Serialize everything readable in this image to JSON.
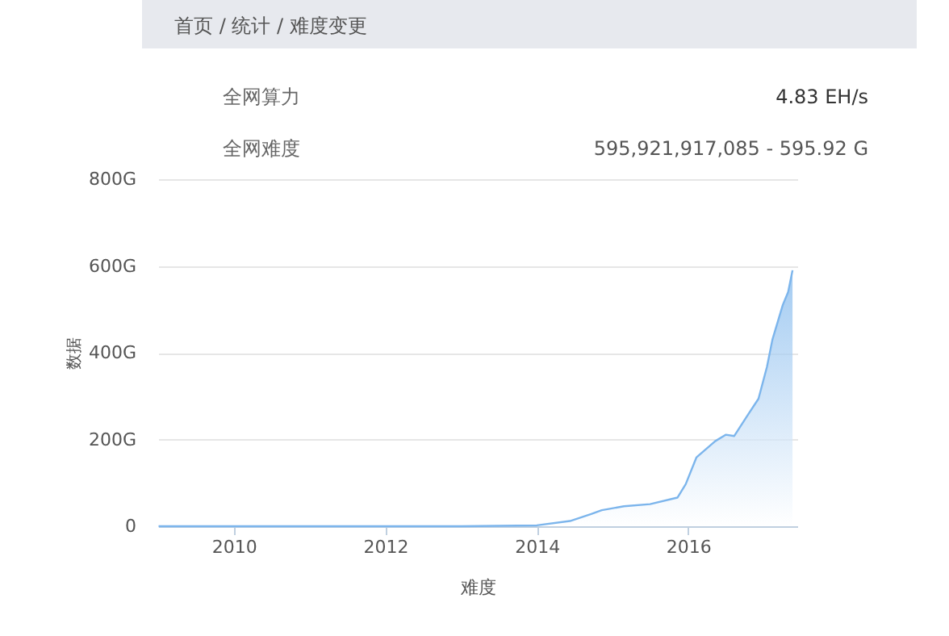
{
  "chart_data": {
    "type": "area",
    "xlabel": "难度",
    "ylabel": "数据",
    "annotations": [
      "首页 / 统计 / 难度变更",
      "全网算力",
      "4.83 EH/s",
      "全网难度",
      "595,921,917,085 - 595.92 G"
    ],
    "x": [
      "2009-01-03",
      "2010-06-01",
      "2012-01-01",
      "2013-01-01",
      "2014-01-01",
      "2014-06-10",
      "2014-09-20",
      "2014-11-10",
      "2015-02-25",
      "2015-07-01",
      "2015-11-10",
      "2015-12-20",
      "2016-02-10",
      "2016-05-10",
      "2016-07-01",
      "2016-08-10",
      "2016-10-15",
      "2016-12-05",
      "2017-01-15",
      "2017-02-10",
      "2017-04-01",
      "2017-04-27",
      "2017-05-18"
    ],
    "series": [
      {
        "color": "#7cb5ec",
        "values": [
          0,
          0,
          0,
          0,
          2,
          12,
          28,
          37,
          46,
          51,
          66,
          97,
          159,
          196,
          211,
          208,
          257,
          294,
          368,
          430,
          510,
          540,
          590
        ]
      }
    ],
    "xlim": [
      "2009-01-01",
      "2017-06-10"
    ],
    "xticks": [
      "2010",
      "2012",
      "2014",
      "2016"
    ],
    "ylim": [
      0,
      800
    ],
    "yticks": [
      {
        "value": 0,
        "label": "0"
      },
      {
        "value": 200,
        "label": "200G"
      },
      {
        "value": 400,
        "label": "400G"
      },
      {
        "value": 600,
        "label": "600G"
      },
      {
        "value": 800,
        "label": "800G"
      }
    ],
    "grid": "y"
  }
}
